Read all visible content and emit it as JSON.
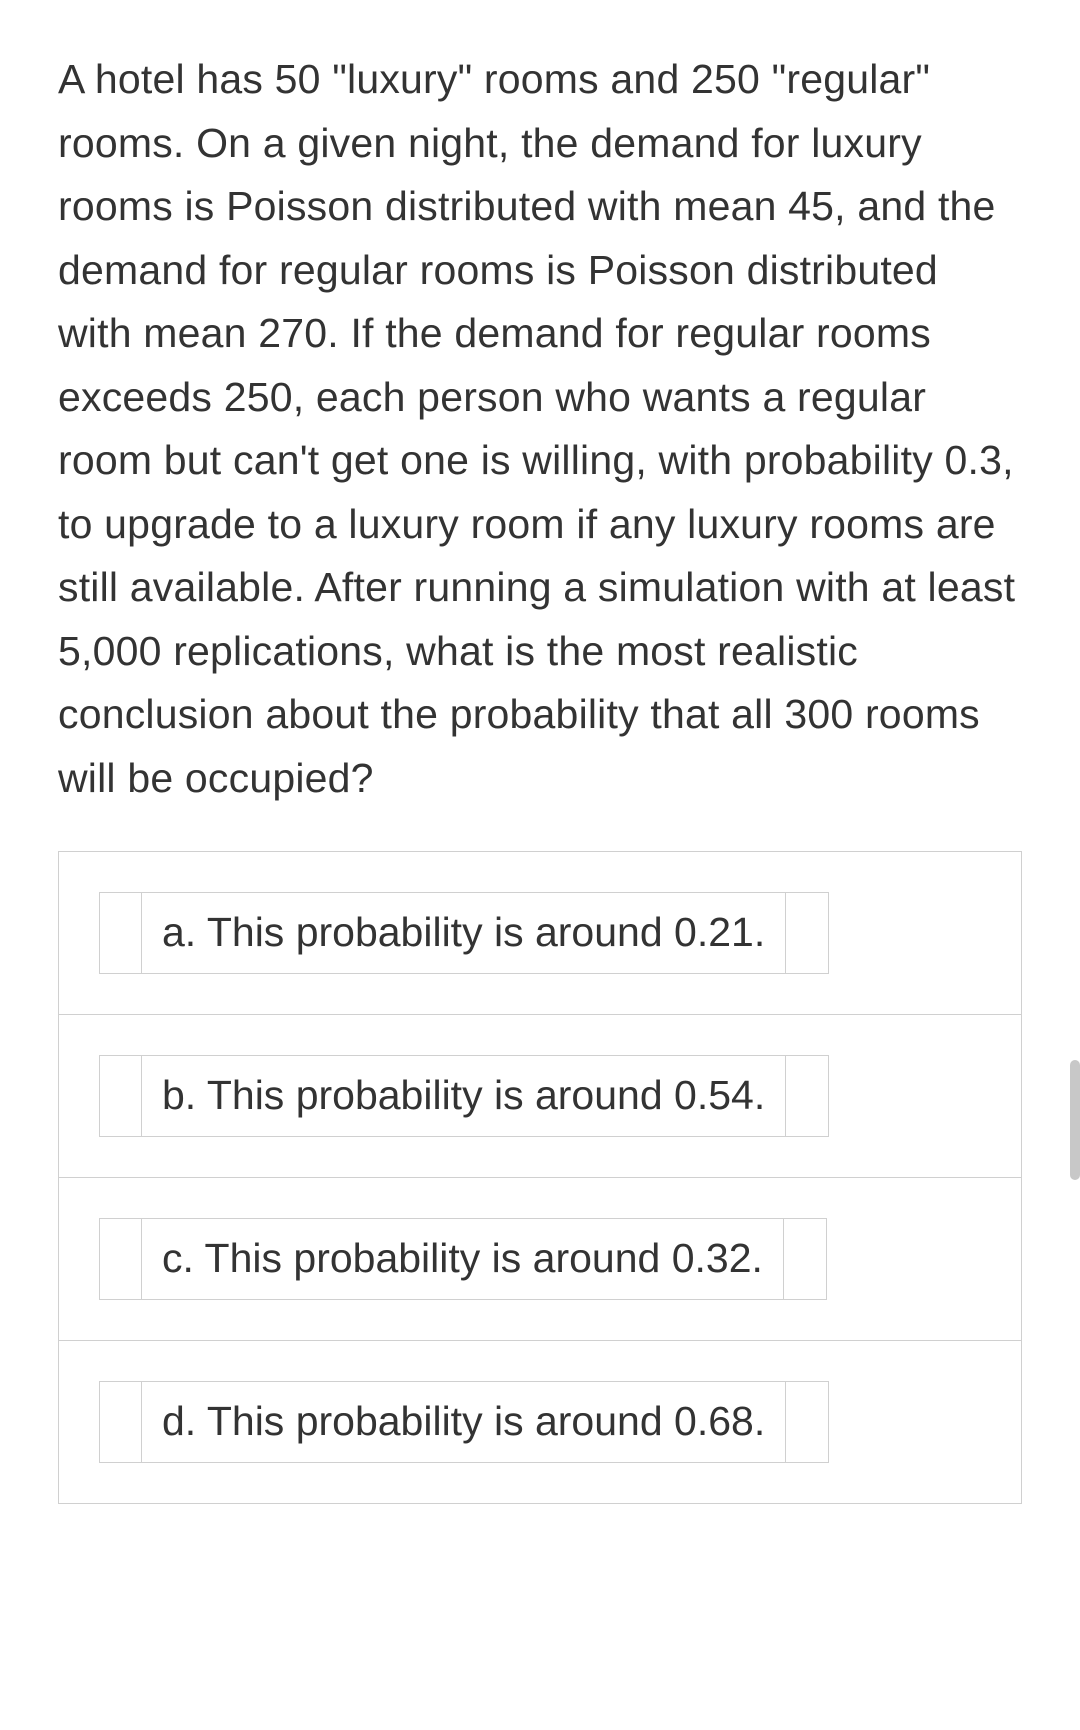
{
  "question": {
    "text": "A hotel has 50 \"luxury\" rooms and 250 \"regular\" rooms. On a given night, the demand for luxury rooms is Poisson distributed with mean 45, and the demand for regular rooms is Poisson distributed with mean 270. If the demand for regular rooms exceeds 250, each person who wants a regular room but can't get one is willing, with probability 0.3, to upgrade to a luxury room if any luxury rooms are still available. After running a simulation with at least 5,000 replications, what is the most realistic conclusion about the probability that all 300 rooms will be occupied?"
  },
  "options": {
    "a": {
      "label": "a. This probability is around 0.21."
    },
    "b": {
      "label": "b. This probability is around 0.54."
    },
    "c": {
      "label": "c. This probability is around 0.32."
    },
    "d": {
      "label": "d. This probability is around 0.68."
    }
  },
  "colors": {
    "background": "#ffffff",
    "text": "#333333",
    "border": "#d0d0d0",
    "scrollbar": "#c8c8c8"
  },
  "typography": {
    "question_fontsize": 41,
    "option_fontsize": 41,
    "font_family": "Arial"
  }
}
